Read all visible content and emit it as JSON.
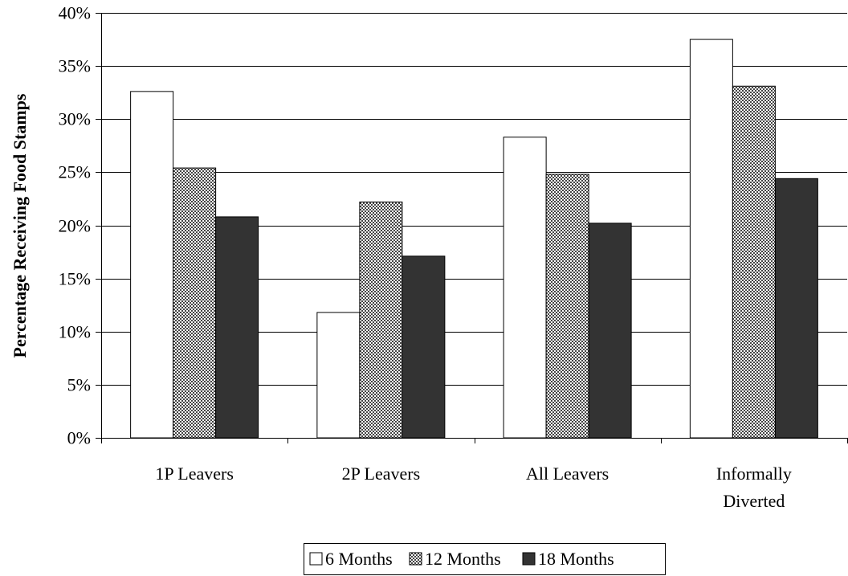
{
  "chart_data": {
    "type": "bar",
    "title": "",
    "xlabel": "",
    "ylabel": "Percentage Receiving Food Stamps",
    "ylim": [
      0,
      40
    ],
    "y_tick_values": [
      0,
      5,
      10,
      15,
      20,
      25,
      30,
      35,
      40
    ],
    "y_tick_labels": [
      "0%",
      "5%",
      "10%",
      "15%",
      "20%",
      "25%",
      "30%",
      "35%",
      "40%"
    ],
    "grid": true,
    "legend_position": "bottom",
    "categories": [
      [
        "1P Leavers"
      ],
      [
        "2P Leavers"
      ],
      [
        "All Leavers"
      ],
      [
        "Informally",
        "Diverted"
      ]
    ],
    "series": [
      {
        "name": "6 Months",
        "values": [
          32.6,
          11.8,
          28.3,
          37.5
        ],
        "fill": "white",
        "color": "#ffffff"
      },
      {
        "name": "12 Months",
        "values": [
          25.4,
          22.2,
          24.8,
          33.1
        ],
        "fill": "checker",
        "color": "#9a9a9a"
      },
      {
        "name": "18 Months",
        "values": [
          20.8,
          17.1,
          20.2,
          24.4
        ],
        "fill": "solid",
        "color": "#333333"
      }
    ]
  }
}
